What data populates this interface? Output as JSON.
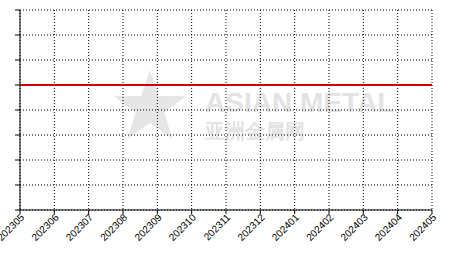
{
  "chart_data": {
    "type": "line",
    "categories": [
      "202305",
      "202306",
      "202307",
      "202308",
      "202309",
      "202310",
      "202311",
      "202312",
      "202401",
      "202402",
      "202403",
      "202404",
      "202405"
    ],
    "series": [
      {
        "name": "",
        "color": "#cc0000",
        "values": [
          5,
          5,
          5,
          5,
          5,
          5,
          5,
          5,
          5,
          5,
          5,
          5,
          5
        ]
      }
    ],
    "ylim": [
      0,
      8
    ],
    "yticks": [
      0,
      1,
      2,
      3,
      4,
      5,
      6,
      7,
      8
    ],
    "grid": true,
    "tick_labels": "x",
    "annotations": [
      "ASIAN METAL",
      "亚洲金属网"
    ]
  }
}
